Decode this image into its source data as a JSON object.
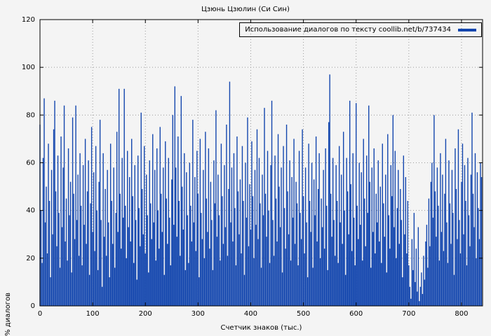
{
  "page": {
    "title": "Цзюнь Цзюлин (Си Син)"
  },
  "chart_data": {
    "type": "bar",
    "title": "Цзюнь Цзюлин (Си Син)",
    "legend": "Использование диалогов по тексту coollib.net/b/737434",
    "xlabel": "Счетчик знаков (тыс.)",
    "ylabel": "% диалогов",
    "xlim": [
      0,
      840
    ],
    "ylim": [
      0,
      120
    ],
    "xticks": [
      0,
      100,
      200,
      300,
      400,
      500,
      600,
      700,
      800
    ],
    "yticks": [
      0,
      20,
      40,
      60,
      80,
      100,
      120
    ],
    "grid": true,
    "legend_position": "top-right",
    "bar_color": "#1346ae",
    "x_start": 0,
    "x_step": 2,
    "values": [
      76,
      40,
      18,
      62,
      87,
      35,
      50,
      22,
      68,
      44,
      12,
      57,
      30,
      74,
      86,
      48,
      25,
      63,
      39,
      16,
      71,
      33,
      58,
      84,
      27,
      45,
      19,
      66,
      38,
      52,
      14,
      79,
      47,
      28,
      84,
      36,
      55,
      21,
      64,
      42,
      17,
      59,
      34,
      70,
      26,
      48,
      61,
      13,
      43,
      75,
      31,
      56,
      23,
      67,
      40,
      15,
      52,
      78,
      36,
      8,
      64,
      29,
      49,
      21,
      57,
      35,
      12,
      68,
      44,
      26,
      58,
      16,
      39,
      73,
      31,
      91,
      47,
      24,
      62,
      37,
      91,
      42,
      20,
      65,
      33,
      54,
      27,
      70,
      46,
      18,
      59,
      36,
      11,
      63,
      41,
      25,
      81,
      49,
      30,
      67,
      22,
      55,
      38,
      14,
      61,
      43,
      28,
      72,
      35,
      57,
      19,
      66,
      40,
      24,
      75,
      47,
      31,
      58,
      13,
      69,
      45,
      26,
      62,
      37,
      17,
      53,
      80,
      34,
      92,
      58,
      29,
      71,
      44,
      21,
      88,
      50,
      32,
      64,
      15,
      56,
      38,
      18,
      60,
      42,
      27,
      78,
      35,
      54,
      23,
      65,
      47,
      12,
      70,
      39,
      28,
      57,
      20,
      73,
      45,
      31,
      66,
      24,
      52,
      36,
      15,
      61,
      43,
      82,
      29,
      55,
      38,
      19,
      68,
      46,
      26,
      59,
      33,
      76,
      21,
      49,
      94,
      35,
      58,
      27,
      64,
      41,
      17,
      71,
      48,
      30,
      53,
      22,
      67,
      44,
      13,
      60,
      37,
      79,
      25,
      51,
      32,
      69,
      46,
      20,
      57,
      34,
      74,
      28,
      62,
      43,
      16,
      55,
      38,
      83,
      47,
      29,
      65,
      40,
      18,
      59,
      86,
      36,
      21,
      63,
      45,
      27,
      72,
      50,
      33,
      58,
      14,
      67,
      41,
      24,
      76,
      48,
      30,
      61,
      19,
      54,
      37,
      70,
      26,
      52,
      43,
      17,
      65,
      39,
      28,
      74,
      46,
      22,
      58,
      35,
      12,
      68,
      44,
      31,
      60,
      16,
      53,
      38,
      71,
      27,
      49,
      64,
      20,
      45,
      33,
      57,
      24,
      66,
      42,
      15,
      77,
      97,
      47,
      29,
      62,
      36,
      21,
      59,
      44,
      18,
      67,
      35,
      55,
      26,
      73,
      40,
      13,
      62,
      48,
      30,
      86,
      51,
      23,
      64,
      37,
      17,
      85,
      42,
      28,
      60,
      34,
      56,
      19,
      70,
      45,
      25,
      63,
      39,
      84,
      52,
      16,
      58,
      31,
      66,
      22,
      47,
      35,
      61,
      27,
      50,
      18,
      68,
      43,
      29,
      55,
      14,
      72,
      38,
      24,
      59,
      46,
      80,
      33,
      65,
      20,
      41,
      57,
      26,
      49,
      36,
      12,
      63,
      30,
      54,
      22,
      44,
      17,
      8,
      3,
      28,
      15,
      39,
      10,
      24,
      6,
      33,
      2,
      8,
      14,
      5,
      21,
      11,
      27,
      34,
      16,
      45,
      25,
      52,
      60,
      37,
      80,
      48,
      29,
      58,
      42,
      19,
      64,
      31,
      55,
      23,
      47,
      70,
      35,
      18,
      61,
      43,
      26,
      57,
      39,
      13,
      66,
      49,
      28,
      74,
      36,
      22,
      52,
      68,
      30,
      59,
      44,
      17,
      62,
      38,
      25,
      55,
      81,
      47,
      33,
      64,
      20,
      56,
      41,
      28,
      60,
      54
    ]
  }
}
